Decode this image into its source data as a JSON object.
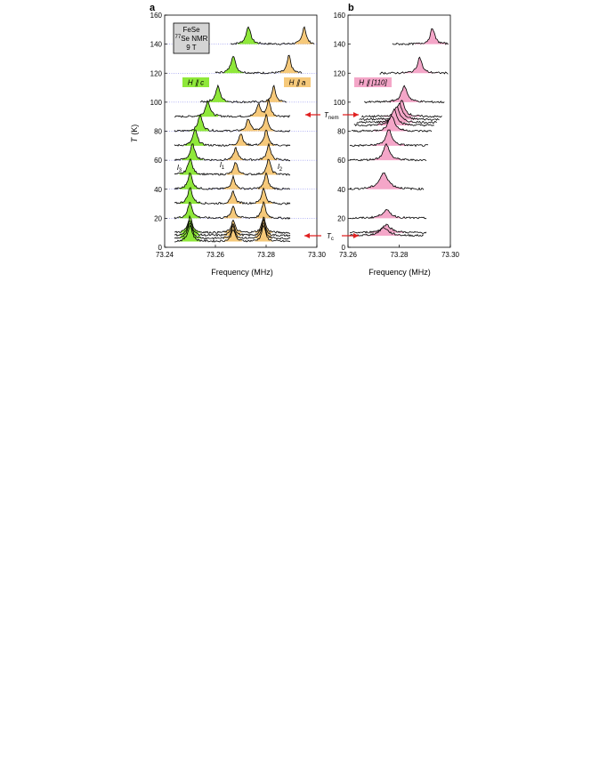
{
  "figure": {
    "panel_a_label": "a",
    "panel_b_label": "b",
    "y_axis_label": "T",
    "y_axis_unit": "(K)",
    "x_axis_label": "Frequency (MHz)",
    "sample_box": {
      "line1": "FeSe",
      "line2_sup": "77",
      "line2": "Se NMR",
      "line3": "9 T"
    },
    "labels": {
      "h_c": "H ∥ c",
      "h_a": "H ∥ a",
      "h_110": "H ∥ [110]",
      "l3": "l",
      "l3_sub": "3",
      "l1": "l",
      "l1_sub": "1",
      "l2": "l",
      "l2_sub": "2",
      "t_nem": "T",
      "t_nem_sub": "nem",
      "t_c": "T",
      "t_c_sub": "c"
    },
    "colors": {
      "h_c": "#8fe83a",
      "h_a": "#f6c97a",
      "h_110": "#f4a6c8",
      "arrows": "#e02020",
      "guides": "#6a6ae8"
    }
  },
  "chart_data": [
    {
      "panel": "a",
      "type": "line",
      "xlabel": "Frequency (MHz)",
      "ylabel": "T (K)",
      "xlim": [
        73.24,
        73.3
      ],
      "ylim": [
        0,
        160
      ],
      "xticks": [
        "73.24",
        "73.26",
        "73.28",
        "73.30"
      ],
      "yticks": [
        "0",
        "20",
        "40",
        "60",
        "80",
        "100",
        "120",
        "140",
        "160"
      ],
      "series": [
        {
          "name": "H ∥ c",
          "offsets_K": [
            140,
            120,
            100,
            90,
            80,
            70,
            60,
            50,
            40,
            30,
            20,
            10,
            8,
            6,
            4
          ],
          "peak_MHz": [
            73.273,
            73.267,
            73.261,
            73.257,
            73.254,
            73.252,
            73.251,
            73.25,
            73.25,
            73.25,
            73.25,
            73.25,
            73.25,
            73.25,
            73.25
          ]
        },
        {
          "name": "H ∥ a",
          "offsets_K": [
            140,
            120,
            100,
            90,
            80,
            70,
            60,
            50,
            40,
            30,
            20,
            10,
            8,
            6,
            4
          ],
          "peak_MHz": [
            73.295,
            73.289,
            73.283,
            73.281,
            73.28,
            73.28,
            73.281,
            73.281,
            73.28,
            73.279,
            73.279,
            73.279,
            73.279,
            73.279,
            73.279
          ],
          "peak2_MHz": [
            null,
            null,
            null,
            73.277,
            73.273,
            73.27,
            73.268,
            73.268,
            73.267,
            73.267,
            73.267,
            73.267,
            73.267,
            73.267,
            73.267
          ]
        }
      ]
    },
    {
      "panel": "b",
      "type": "line",
      "xlabel": "Frequency (MHz)",
      "ylabel": "T (K)",
      "xlim": [
        73.26,
        73.3
      ],
      "ylim": [
        0,
        160
      ],
      "xticks": [
        "73.26",
        "73.28",
        "73.30"
      ],
      "yticks": [
        "0",
        "20",
        "40",
        "60",
        "80",
        "100",
        "120",
        "140",
        "160"
      ],
      "series": [
        {
          "name": "H ∥ [110]",
          "offsets_K": [
            140,
            120,
            100,
            90,
            88,
            86,
            84,
            80,
            70,
            60,
            40,
            20,
            10,
            8
          ],
          "peak_MHz": [
            73.293,
            73.288,
            73.282,
            73.281,
            73.28,
            73.279,
            73.278,
            73.277,
            73.276,
            73.275,
            73.274,
            73.275,
            73.275,
            73.274
          ]
        }
      ]
    }
  ]
}
